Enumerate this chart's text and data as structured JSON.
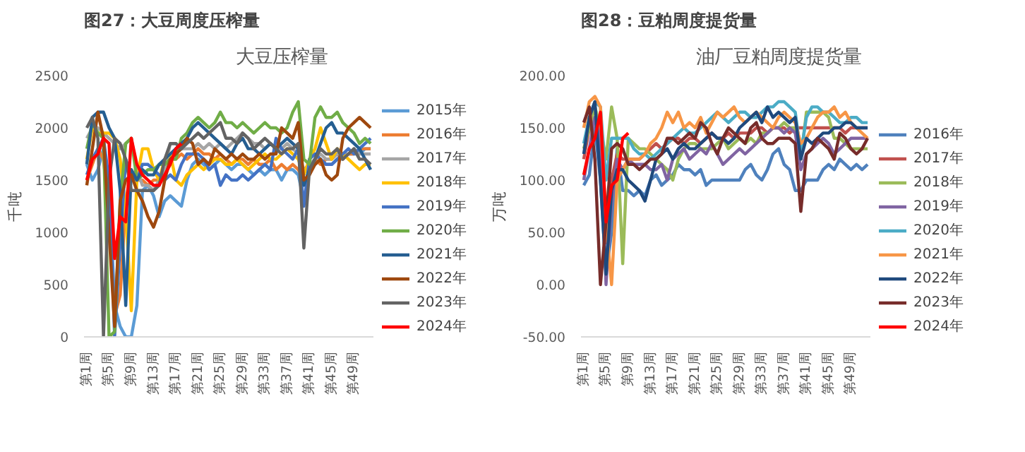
{
  "chart_data": [
    {
      "type": "line",
      "title": "图27：大豆周度压榨量",
      "subtitle": "大豆压榨量",
      "ylabel": "千吨",
      "grid": false,
      "legend": "right",
      "marker": "none",
      "line_style": "solid",
      "categories": [
        "第1周",
        null,
        null,
        null,
        "第5周",
        null,
        null,
        null,
        "第9周",
        null,
        null,
        null,
        "第13周",
        null,
        null,
        null,
        "第17周",
        null,
        null,
        null,
        "第21周",
        null,
        null,
        null,
        "第25周",
        null,
        null,
        null,
        "第29周",
        null,
        null,
        null,
        "第33周",
        null,
        null,
        null,
        "第37周",
        null,
        null,
        null,
        "第41周",
        null,
        null,
        null,
        "第45周",
        null,
        null,
        null,
        "第49周",
        null,
        null,
        null
      ],
      "ylim": [
        0,
        2500
      ],
      "yticks": [
        0,
        500,
        1000,
        1500,
        2000,
        2500
      ],
      "series": [
        {
          "name": "2015年",
          "color": "#5b9bd5",
          "values": [
            1650,
            1500,
            1600,
            1800,
            1500,
            300,
            100,
            0,
            0,
            300,
            1400,
            1450,
            1350,
            1150,
            1300,
            1350,
            1300,
            1250,
            1500,
            1650,
            1700,
            1650,
            1600,
            1650,
            1700,
            1650,
            1600,
            1650,
            1650,
            1600,
            1550,
            1600,
            1550,
            1600,
            1600,
            1500,
            1600,
            1600,
            1550,
            1300,
            1600,
            1650,
            1700,
            1650,
            1650,
            1700,
            1700,
            1750,
            1750,
            1750,
            1800,
            1800
          ]
        },
        {
          "name": "2016年",
          "color": "#ed7d31",
          "values": [
            1500,
            1650,
            1800,
            1700,
            1200,
            200,
            400,
            1300,
            1600,
            1500,
            1500,
            1450,
            1500,
            1500,
            1600,
            1700,
            1700,
            1750,
            1700,
            1750,
            1800,
            1750,
            1750,
            1700,
            1750,
            1700,
            1650,
            1700,
            1700,
            1650,
            1700,
            1650,
            1650,
            1700,
            1600,
            1650,
            1600,
            1650,
            1600,
            1500,
            1550,
            1700,
            1650,
            1700,
            1700,
            1750,
            1700,
            1750,
            1750,
            1800,
            1800,
            1800
          ]
        },
        {
          "name": "2017年",
          "color": "#a5a5a5",
          "values": [
            1900,
            2000,
            2000,
            1950,
            1900,
            1850,
            1800,
            1850,
            1900,
            1600,
            1450,
            1450,
            1400,
            1500,
            1600,
            1850,
            1850,
            1800,
            1800,
            1800,
            1850,
            1800,
            1850,
            1800,
            1850,
            1800,
            1850,
            1900,
            1950,
            1900,
            1850,
            1850,
            1800,
            1850,
            1800,
            1800,
            1850,
            1800,
            1750,
            1600,
            1650,
            1700,
            1750,
            1700,
            1700,
            1750,
            1750,
            1750,
            1800,
            1750,
            1750,
            1750
          ]
        },
        {
          "name": "2018年",
          "color": "#ffc000",
          "values": [
            1700,
            2000,
            1950,
            1950,
            1950,
            1900,
            1700,
            1200,
            250,
            1500,
            1800,
            1800,
            1600,
            1500,
            1700,
            1750,
            1500,
            1450,
            1550,
            1600,
            1650,
            1600,
            1650,
            1700,
            1700,
            1650,
            1650,
            1700,
            1650,
            1600,
            1650,
            1700,
            1750,
            1700,
            1700,
            1750,
            1800,
            1750,
            1700,
            1550,
            1700,
            1800,
            2000,
            1850,
            1700,
            1800,
            1750,
            1700,
            1650,
            1600,
            1650,
            1650
          ]
        },
        {
          "name": "2019年",
          "color": "#4472c4",
          "values": [
            1550,
            1700,
            1800,
            1900,
            1500,
            0,
            900,
            1700,
            1550,
            1500,
            1650,
            1650,
            1600,
            1550,
            1500,
            1550,
            1500,
            1650,
            1750,
            1750,
            1750,
            1700,
            1600,
            1650,
            1450,
            1550,
            1500,
            1500,
            1550,
            1500,
            1550,
            1600,
            1650,
            1600,
            1900,
            1800,
            1750,
            1700,
            1800,
            1250,
            1700,
            1750,
            1700,
            1650,
            1650,
            1700,
            1750,
            1800,
            1750,
            1800,
            1850,
            1900
          ]
        },
        {
          "name": "2020年",
          "color": "#70ad47",
          "values": [
            1800,
            2050,
            1950,
            1900,
            0,
            50,
            1300,
            1850,
            1900,
            1500,
            1550,
            1600,
            1600,
            1650,
            1650,
            1700,
            1700,
            1900,
            1950,
            2050,
            2100,
            2050,
            2000,
            2050,
            2150,
            2050,
            2050,
            2000,
            2050,
            2000,
            1950,
            2000,
            2050,
            2000,
            2000,
            1950,
            2000,
            2150,
            2250,
            1700,
            1650,
            2100,
            2200,
            2100,
            2100,
            2150,
            2050,
            2000,
            1950,
            1850,
            1900,
            1850
          ]
        },
        {
          "name": "2021年",
          "color": "#255e91",
          "values": [
            1650,
            2100,
            2150,
            2150,
            2000,
            1900,
            1400,
            300,
            1600,
            1500,
            1600,
            1550,
            1550,
            1650,
            1700,
            1750,
            1800,
            1850,
            1900,
            2000,
            2050,
            2000,
            1950,
            1900,
            1850,
            1800,
            1750,
            1850,
            1900,
            1800,
            1800,
            1750,
            1800,
            1850,
            1800,
            1850,
            1900,
            1850,
            1800,
            1450,
            1600,
            1700,
            1850,
            2000,
            2050,
            1950,
            1950,
            1900,
            1850,
            1800,
            1700,
            1600
          ]
        },
        {
          "name": "2022年",
          "color": "#9e480e",
          "values": [
            1450,
            1800,
            2150,
            1900,
            1000,
            100,
            1300,
            1500,
            1550,
            1400,
            1300,
            1150,
            1050,
            1200,
            1500,
            1700,
            1750,
            1800,
            1900,
            1850,
            1650,
            1700,
            1650,
            1800,
            1750,
            1700,
            1750,
            1700,
            1750,
            1700,
            1700,
            1750,
            1700,
            1750,
            1750,
            2000,
            1950,
            1900,
            2050,
            1500,
            1550,
            1650,
            1700,
            1550,
            1500,
            1550,
            1900,
            2000,
            2050,
            2100,
            2050,
            2000
          ]
        },
        {
          "name": "2023年",
          "color": "#636363",
          "values": [
            2000,
            2100,
            1900,
            0,
            1500,
            1900,
            1850,
            1700,
            1400,
            1400,
            1400,
            1400,
            1400,
            1450,
            1700,
            1850,
            1850,
            1800,
            1850,
            1900,
            1950,
            1900,
            1950,
            2000,
            2050,
            1900,
            1900,
            1850,
            1950,
            1900,
            1800,
            1850,
            1900,
            1850,
            1800,
            1750,
            1800,
            1800,
            1850,
            850,
            1600,
            1700,
            1800,
            1750,
            1750,
            1800,
            1700,
            1750,
            1800,
            1700,
            1700,
            1650
          ]
        },
        {
          "name": "2024年",
          "color": "#ff0000",
          "values": [
            1500,
            1700,
            1750,
            1900,
            1850,
            750,
            1150,
            1100,
            1900,
            1650,
            1550,
            1500,
            1450,
            1450,
            1550,
            1650,
            1800,
            1850,
            null,
            null,
            null,
            null,
            null,
            null,
            null,
            null,
            null,
            null,
            null,
            null,
            null,
            null,
            null,
            null,
            null,
            null,
            null,
            null,
            null,
            null,
            null,
            null,
            null,
            null,
            null,
            null,
            null,
            null,
            null,
            null,
            null,
            null
          ]
        }
      ]
    },
    {
      "type": "line",
      "title": "图28：豆粕周度提货量",
      "subtitle": "油厂豆粕周度提货量",
      "ylabel": "万吨",
      "grid": false,
      "legend": "right",
      "marker": "none",
      "line_style": "solid",
      "categories": [
        "第1周",
        null,
        null,
        null,
        "第5周",
        null,
        null,
        null,
        "第9周",
        null,
        null,
        null,
        "第13周",
        null,
        null,
        null,
        "第17周",
        null,
        null,
        null,
        "第21周",
        null,
        null,
        null,
        "第25周",
        null,
        null,
        null,
        "第29周",
        null,
        null,
        null,
        "第33周",
        null,
        null,
        null,
        "第37周",
        null,
        null,
        null,
        "第41周",
        null,
        null,
        null,
        "第45周",
        null,
        null,
        null,
        "第49周",
        null,
        null,
        null
      ],
      "ylim": [
        -50,
        200
      ],
      "yticks": [
        {
          "value": -50,
          "label": "-50.00"
        },
        {
          "value": 0,
          "label": "0.00"
        },
        {
          "value": 50,
          "label": "50.00"
        },
        {
          "value": 100,
          "label": "100.00"
        },
        {
          "value": 150,
          "label": "150.00"
        },
        {
          "value": 200,
          "label": "200.00"
        }
      ],
      "series": [
        {
          "name": "2016年",
          "color": "#4f81bd",
          "values": [
            95,
            105,
            150,
            100,
            10,
            50,
            130,
            90,
            90,
            85,
            90,
            85,
            100,
            105,
            95,
            100,
            105,
            115,
            110,
            110,
            105,
            110,
            95,
            100,
            100,
            100,
            100,
            100,
            100,
            110,
            115,
            105,
            100,
            110,
            125,
            130,
            115,
            110,
            90,
            90,
            100,
            100,
            100,
            110,
            115,
            110,
            120,
            115,
            110,
            115,
            110,
            115
          ]
        },
        {
          "name": "2017年",
          "color": "#c0504d",
          "values": [
            120,
            150,
            160,
            130,
            40,
            100,
            125,
            120,
            120,
            120,
            120,
            125,
            130,
            135,
            130,
            135,
            140,
            140,
            135,
            140,
            140,
            135,
            140,
            145,
            140,
            140,
            145,
            140,
            145,
            145,
            145,
            150,
            150,
            145,
            150,
            150,
            150,
            145,
            150,
            150,
            150,
            150,
            150,
            150,
            150,
            150,
            150,
            145,
            150,
            150,
            150,
            150
          ]
        },
        {
          "name": "2018年",
          "color": "#9bbb59",
          "values": [
            130,
            150,
            170,
            150,
            120,
            170,
            140,
            20,
            140,
            135,
            130,
            130,
            125,
            120,
            115,
            110,
            100,
            120,
            130,
            135,
            135,
            130,
            130,
            130,
            135,
            140,
            130,
            135,
            140,
            135,
            140,
            135,
            145,
            145,
            150,
            150,
            155,
            150,
            150,
            120,
            165,
            165,
            165,
            165,
            160,
            140,
            140,
            135,
            130,
            130,
            130,
            130
          ]
        },
        {
          "name": "2019年",
          "color": "#8064a2",
          "values": [
            100,
            130,
            160,
            140,
            0,
            80,
            120,
            110,
            120,
            115,
            115,
            115,
            110,
            110,
            115,
            100,
            120,
            125,
            130,
            120,
            125,
            130,
            125,
            135,
            125,
            115,
            120,
            125,
            130,
            125,
            130,
            135,
            140,
            145,
            150,
            150,
            145,
            150,
            145,
            110,
            125,
            130,
            135,
            140,
            135,
            125,
            130,
            135,
            140,
            140,
            140,
            140
          ]
        },
        {
          "name": "2020年",
          "color": "#4bacc6",
          "values": [
            135,
            160,
            175,
            170,
            100,
            140,
            140,
            140,
            140,
            130,
            125,
            125,
            120,
            125,
            130,
            135,
            140,
            145,
            150,
            145,
            145,
            150,
            155,
            160,
            165,
            160,
            155,
            160,
            165,
            165,
            160,
            160,
            165,
            170,
            170,
            175,
            175,
            170,
            165,
            125,
            160,
            170,
            170,
            165,
            165,
            160,
            155,
            155,
            160,
            160,
            155,
            155
          ]
        },
        {
          "name": "2021年",
          "color": "#f79646",
          "values": [
            150,
            175,
            180,
            170,
            60,
            0,
            100,
            110,
            120,
            120,
            120,
            125,
            135,
            140,
            150,
            165,
            155,
            165,
            150,
            155,
            150,
            160,
            145,
            155,
            165,
            160,
            165,
            170,
            160,
            155,
            160,
            165,
            160,
            155,
            150,
            160,
            165,
            160,
            155,
            135,
            140,
            150,
            160,
            165,
            165,
            170,
            160,
            165,
            155,
            150,
            145,
            140
          ]
        },
        {
          "name": "2022年",
          "color": "#1f497d",
          "values": [
            125,
            160,
            175,
            100,
            10,
            90,
            110,
            110,
            100,
            95,
            90,
            80,
            100,
            120,
            125,
            130,
            120,
            130,
            135,
            130,
            130,
            135,
            140,
            145,
            140,
            140,
            135,
            140,
            150,
            155,
            160,
            165,
            155,
            170,
            160,
            165,
            160,
            155,
            160,
            120,
            140,
            135,
            140,
            145,
            145,
            150,
            150,
            155,
            155,
            150,
            150,
            150
          ]
        },
        {
          "name": "2023年",
          "color": "#772c2a",
          "values": [
            155,
            170,
            120,
            0,
            60,
            130,
            135,
            130,
            115,
            115,
            110,
            115,
            120,
            120,
            125,
            140,
            140,
            135,
            140,
            145,
            140,
            155,
            150,
            135,
            125,
            140,
            150,
            145,
            140,
            135,
            150,
            155,
            140,
            135,
            135,
            140,
            140,
            140,
            135,
            70,
            125,
            130,
            140,
            135,
            130,
            120,
            145,
            140,
            130,
            125,
            130,
            140
          ]
        },
        {
          "name": "2024年",
          "color": "#ff0000",
          "values": [
            105,
            130,
            140,
            165,
            60,
            95,
            100,
            140,
            145,
            null,
            null,
            null,
            null,
            null,
            null,
            null,
            null,
            null,
            null,
            null,
            null,
            null,
            null,
            null,
            null,
            null,
            null,
            null,
            null,
            null,
            null,
            null,
            null,
            null,
            null,
            null,
            null,
            null,
            null,
            null,
            null,
            null,
            null,
            null,
            null,
            null,
            null,
            null,
            null,
            null,
            null,
            null
          ]
        }
      ]
    }
  ]
}
